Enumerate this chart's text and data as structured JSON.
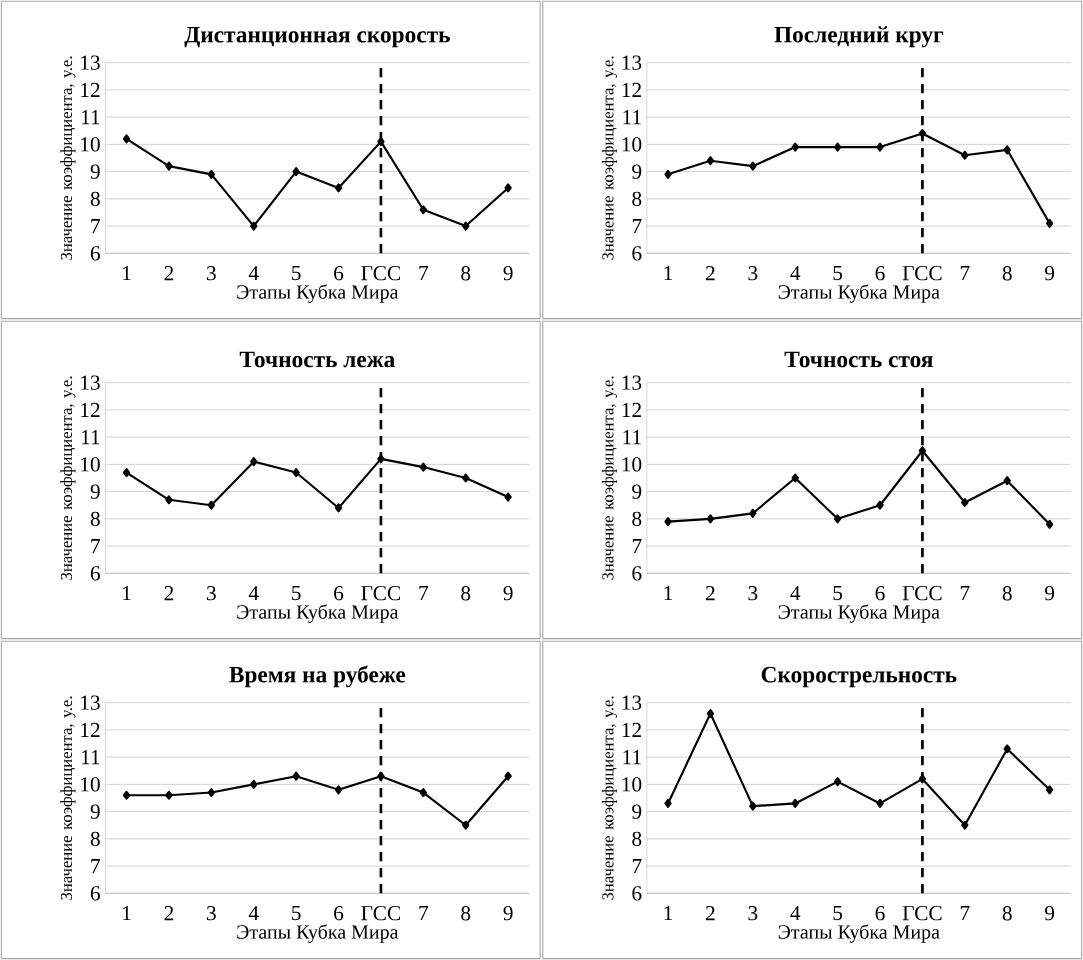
{
  "chart_data": [
    {
      "type": "line",
      "title": "Дистанционная скорость",
      "xlabel": "Этапы Кубка Мира",
      "ylabel": "Значение коэффициента, у.е.",
      "categories": [
        "1",
        "2",
        "3",
        "4",
        "5",
        "6",
        "ГСС",
        "7",
        "8",
        "9"
      ],
      "values": [
        10.2,
        9.2,
        8.9,
        7.0,
        9.0,
        8.4,
        10.1,
        7.6,
        7.0,
        8.4
      ],
      "color": "#000000",
      "marker": "diamond",
      "ylim": [
        6,
        13
      ],
      "yticks": [
        6,
        7,
        8,
        9,
        10,
        11,
        12,
        13
      ],
      "grid": "y",
      "ref_lines": [
        {
          "axis": "x",
          "value": "ГСС",
          "color": "#000000",
          "line_style": "dashed"
        }
      ]
    },
    {
      "type": "line",
      "title": "Последний круг",
      "xlabel": "Этапы Кубка Мира",
      "ylabel": "Значение коэффициента, у.е.",
      "categories": [
        "1",
        "2",
        "3",
        "4",
        "5",
        "6",
        "ГСС",
        "7",
        "8",
        "9"
      ],
      "values": [
        8.9,
        9.4,
        9.2,
        9.9,
        9.9,
        9.9,
        10.4,
        9.6,
        9.8,
        7.1
      ],
      "color": "#000000",
      "marker": "diamond",
      "ylim": [
        6,
        13
      ],
      "yticks": [
        6,
        7,
        8,
        9,
        10,
        11,
        12,
        13
      ],
      "grid": "y",
      "ref_lines": [
        {
          "axis": "x",
          "value": "ГСС",
          "color": "#000000",
          "line_style": "dashed"
        }
      ]
    },
    {
      "type": "line",
      "title": "Точность лежа",
      "xlabel": "Этапы Кубка Мира",
      "ylabel": "Значение коэффициента, у.е.",
      "categories": [
        "1",
        "2",
        "3",
        "4",
        "5",
        "6",
        "ГСС",
        "7",
        "8",
        "9"
      ],
      "values": [
        9.7,
        8.7,
        8.5,
        10.1,
        9.7,
        8.4,
        10.2,
        9.9,
        9.5,
        8.8
      ],
      "color": "#000000",
      "marker": "diamond",
      "ylim": [
        6,
        13
      ],
      "yticks": [
        6,
        7,
        8,
        9,
        10,
        11,
        12,
        13
      ],
      "grid": "y",
      "ref_lines": [
        {
          "axis": "x",
          "value": "ГСС",
          "color": "#000000",
          "line_style": "dashed"
        }
      ]
    },
    {
      "type": "line",
      "title": "Точность стоя",
      "xlabel": "Этапы Кубка Мира",
      "ylabel": "Значение коэффициента, у.е.",
      "categories": [
        "1",
        "2",
        "3",
        "4",
        "5",
        "6",
        "ГСС",
        "7",
        "8",
        "9"
      ],
      "values": [
        7.9,
        8.0,
        8.2,
        9.5,
        8.0,
        8.5,
        10.5,
        8.6,
        9.4,
        7.8
      ],
      "color": "#000000",
      "marker": "diamond",
      "ylim": [
        6,
        13
      ],
      "yticks": [
        6,
        7,
        8,
        9,
        10,
        11,
        12,
        13
      ],
      "grid": "y",
      "ref_lines": [
        {
          "axis": "x",
          "value": "ГСС",
          "color": "#000000",
          "line_style": "dashed"
        }
      ]
    },
    {
      "type": "line",
      "title": "Время на рубеже",
      "xlabel": "Этапы Кубка Мира",
      "ylabel": "Значение коэффициента, у.е.",
      "categories": [
        "1",
        "2",
        "3",
        "4",
        "5",
        "6",
        "ГСС",
        "7",
        "8",
        "9"
      ],
      "values": [
        9.6,
        9.6,
        9.7,
        10.0,
        10.3,
        9.8,
        10.3,
        9.7,
        8.5,
        10.3
      ],
      "color": "#000000",
      "marker": "diamond",
      "ylim": [
        6,
        13
      ],
      "yticks": [
        6,
        7,
        8,
        9,
        10,
        11,
        12,
        13
      ],
      "grid": "y",
      "ref_lines": [
        {
          "axis": "x",
          "value": "ГСС",
          "color": "#000000",
          "line_style": "dashed"
        }
      ]
    },
    {
      "type": "line",
      "title": "Скорострельность",
      "xlabel": "Этапы Кубка Мира",
      "ylabel": "Значение коэффициента, у.е.",
      "categories": [
        "1",
        "2",
        "3",
        "4",
        "5",
        "6",
        "ГСС",
        "7",
        "8",
        "9"
      ],
      "values": [
        9.3,
        12.6,
        9.2,
        9.3,
        10.1,
        9.3,
        10.2,
        8.5,
        11.3,
        9.8
      ],
      "color": "#000000",
      "marker": "diamond",
      "ylim": [
        6,
        13
      ],
      "yticks": [
        6,
        7,
        8,
        9,
        10,
        11,
        12,
        13
      ],
      "grid": "y",
      "ref_lines": [
        {
          "axis": "x",
          "value": "ГСС",
          "color": "#000000",
          "line_style": "dashed"
        }
      ]
    }
  ]
}
